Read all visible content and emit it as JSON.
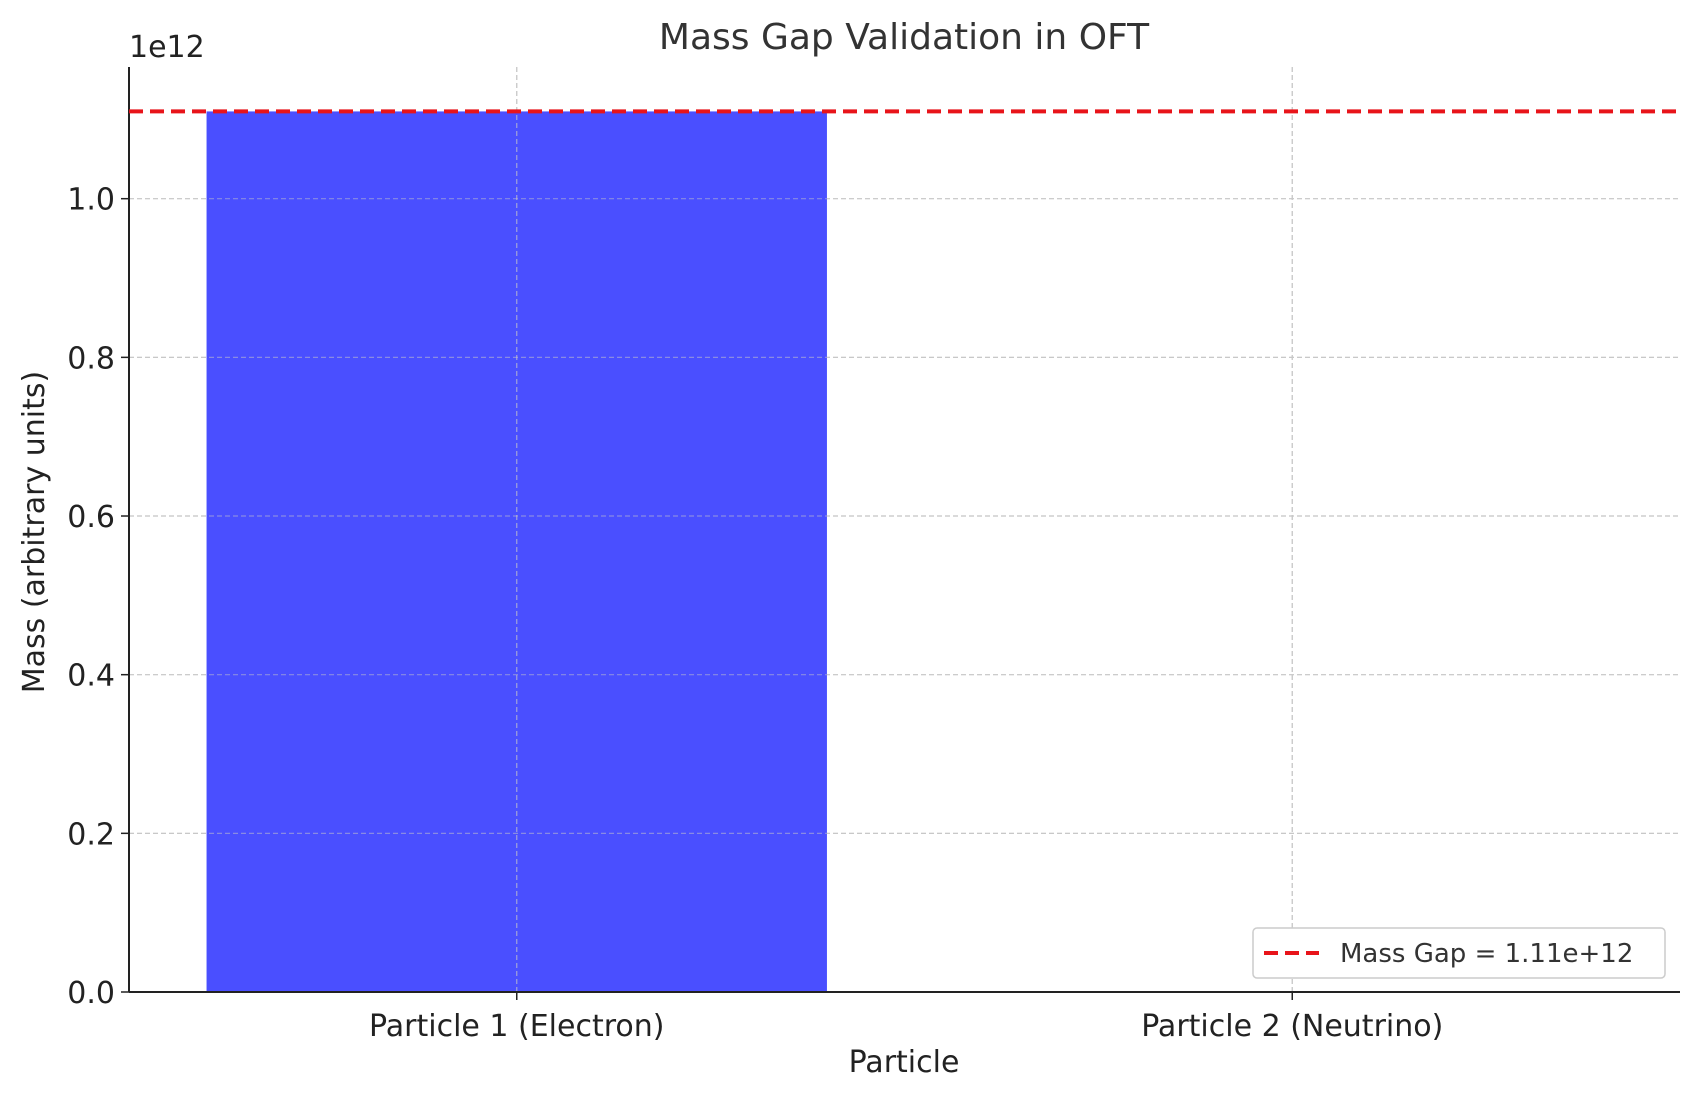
{
  "chart_data": {
    "type": "bar",
    "title": "Mass Gap Validation in OFT",
    "xlabel": "Particle",
    "ylabel": "Mass (arbitrary units)",
    "y_offset_label": "1e12",
    "y_scale": 1000000000000.0,
    "categories": [
      "Particle 1 (Electron)",
      "Particle 2 (Neutrino)"
    ],
    "values": [
      1110000000000.0,
      0
    ],
    "ylim": [
      0,
      1166000000000.0
    ],
    "yticks": [
      0.0,
      0.2,
      0.4,
      0.6,
      0.8,
      1.0
    ],
    "grid": true,
    "bar_color": "#4a4fff",
    "reference_line": {
      "value": 1110000000000.0,
      "label": "Mass Gap = 1.11e+12",
      "color": "#e8141a",
      "style": "dashed"
    },
    "legend_position": "bottom-right"
  }
}
